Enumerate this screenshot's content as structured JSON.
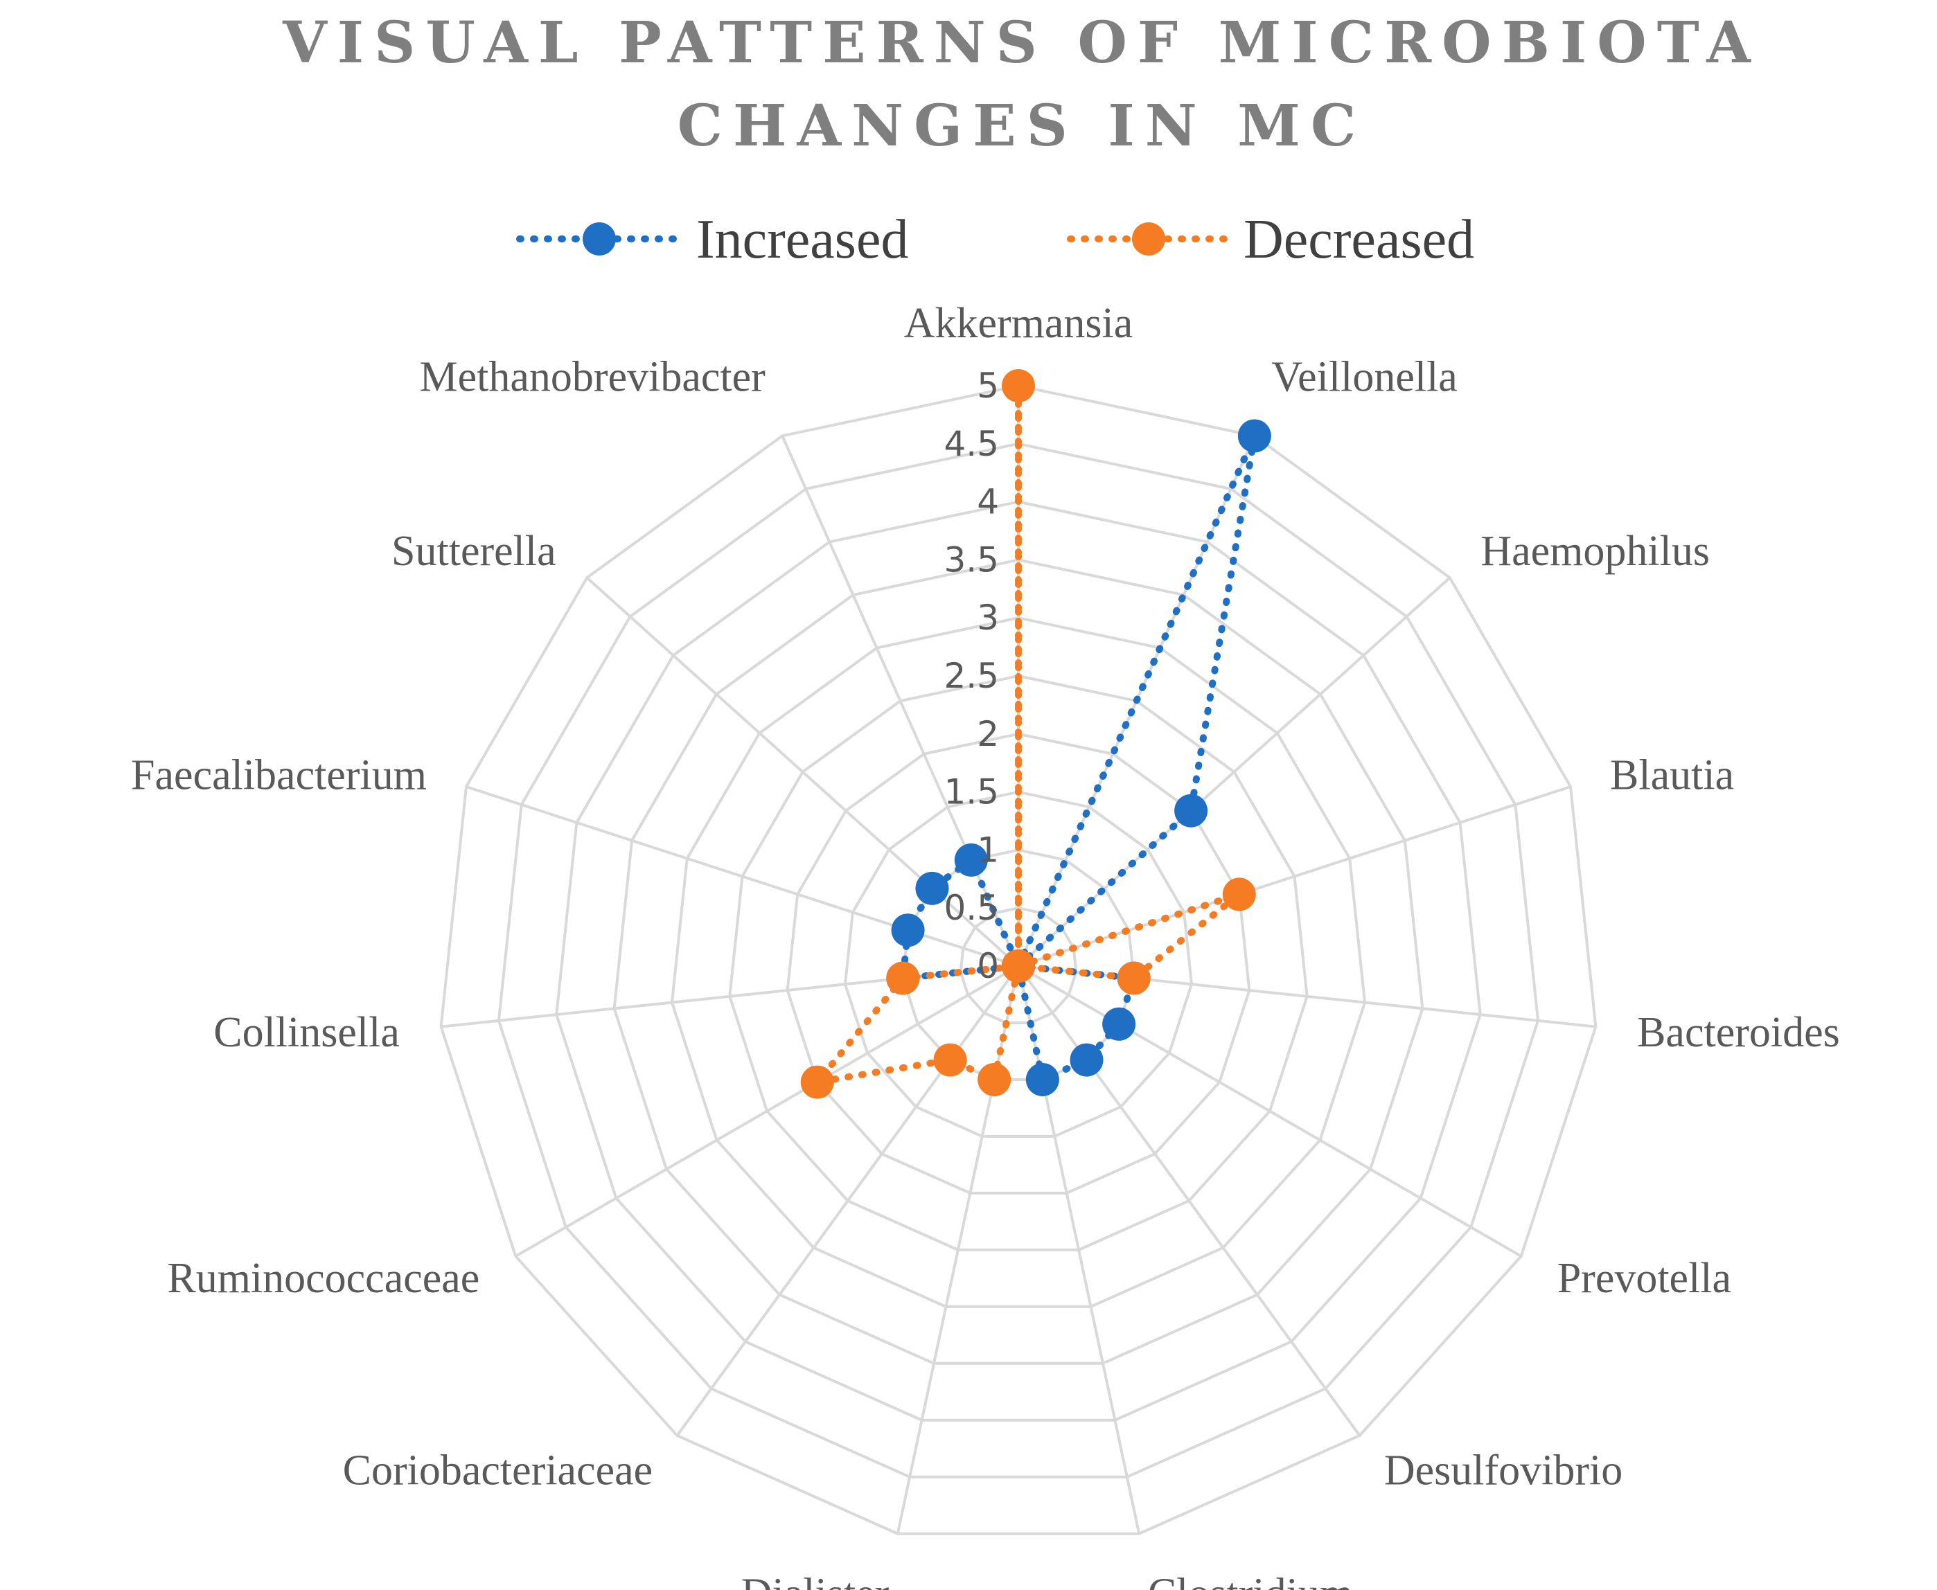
{
  "chart_data": {
    "type": "radar",
    "title_lines": [
      "VISUAL PATTERNS OF MICROBIOTA",
      "CHANGES IN MC"
    ],
    "categories": [
      "Akkermansia",
      "Veillonella",
      "Haemophilus",
      "Blautia",
      "Bacteroides",
      "Prevotella",
      "Desulfovibrio",
      "Clostridium",
      "Dialister",
      "Coriobacteriaceae",
      "Ruminococcaceae",
      "Collinsella",
      "Faecalibacterium",
      "Sutterella",
      "Methanobrevibacter"
    ],
    "radial_range": [
      0,
      5
    ],
    "radial_ticks": [
      "0",
      "0.5",
      "1",
      "1.5",
      "2",
      "2.5",
      "3",
      "3.5",
      "4",
      "4.5",
      "5"
    ],
    "series": [
      {
        "name": "Increased",
        "color": "#1f6fc5",
        "values": [
          0,
          5,
          2,
          0,
          1,
          1,
          1,
          1,
          0,
          0,
          0,
          1,
          1,
          1,
          1
        ]
      },
      {
        "name": "Decreased",
        "color": "#f57c22",
        "values": [
          5,
          0,
          0,
          2,
          1,
          0,
          0,
          0,
          1,
          1,
          2,
          1,
          0,
          0,
          0
        ]
      }
    ],
    "legend_position": "top",
    "grid": true
  }
}
